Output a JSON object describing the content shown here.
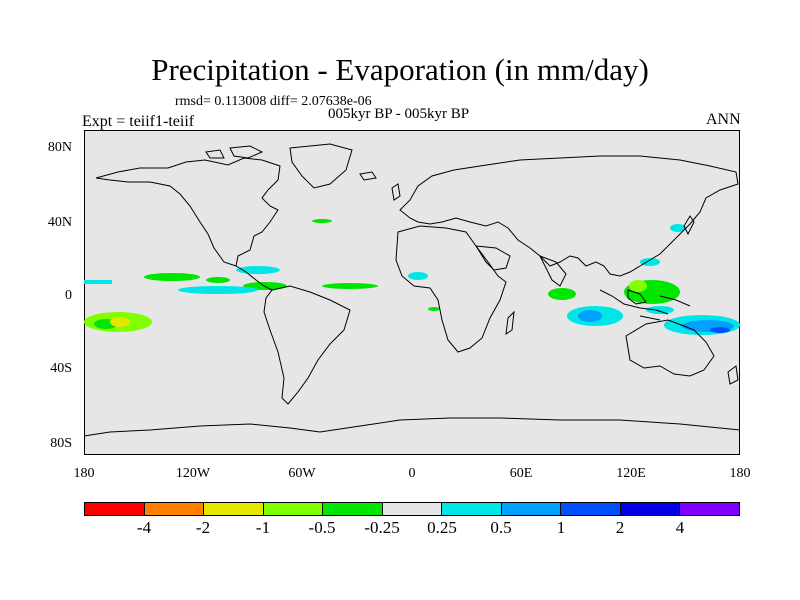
{
  "title": "Precipitation - Evaporation (in mm/day)",
  "stats": "rmsd= 0.113008 diff= 2.07638e-06",
  "expt": "Expt = teiif1-teiif",
  "period": "005kyr BP - 005kyr BP",
  "season": "ANN",
  "lat_labels": [
    "80N",
    "40N",
    "0",
    "40S",
    "80S"
  ],
  "lon_labels": [
    "180",
    "120W",
    "60W",
    "0",
    "60E",
    "120E",
    "180"
  ],
  "colorbar": {
    "colors": [
      "#ff0000",
      "#ff8000",
      "#e6e600",
      "#80ff00",
      "#00e600",
      "#e6e6e6",
      "#00e6e6",
      "#00a0ff",
      "#0050ff",
      "#0000e6",
      "#8000ff"
    ],
    "labels": [
      "-4",
      "-2",
      "-1",
      "-0.5",
      "-0.25",
      "0.25",
      "0.5",
      "1",
      "2",
      "4"
    ]
  }
}
